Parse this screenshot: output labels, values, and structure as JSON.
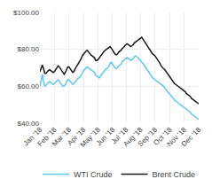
{
  "chart_data": {
    "type": "line",
    "categories": [
      "Jan '18",
      null,
      null,
      null,
      null,
      null,
      null,
      null,
      null,
      null,
      null,
      null,
      "Feb '18",
      null,
      null,
      null,
      null,
      null,
      null,
      null,
      null,
      null,
      null,
      null,
      "Mar '18",
      null,
      null,
      null,
      null,
      null,
      null,
      null,
      null,
      null,
      null,
      null,
      "Apr '18",
      null,
      null,
      null,
      null,
      null,
      null,
      null,
      null,
      null,
      null,
      null,
      "May '18",
      null,
      null,
      null,
      null,
      null,
      null,
      null,
      null,
      null,
      null,
      null,
      "Jun '18",
      null,
      null,
      null,
      null,
      null,
      null,
      null,
      null,
      null,
      null,
      "Jul '18",
      null,
      null,
      null,
      null,
      null,
      null,
      null,
      null,
      null,
      null,
      null,
      "Aug '18",
      null,
      null,
      null,
      null,
      null,
      null,
      null,
      null,
      null,
      null,
      null,
      "Sep '18",
      null,
      null,
      null,
      null,
      null,
      null,
      null,
      null,
      null,
      null,
      null,
      "Oct '18",
      null,
      null,
      null,
      null,
      null,
      null,
      null,
      null,
      null,
      null,
      null,
      "Nov '18",
      null,
      null,
      null,
      null,
      null,
      null,
      null,
      null,
      null,
      null,
      null,
      "Dec '18"
    ],
    "series": [
      {
        "name": "WTI Crude",
        "color": "#5bc8f5",
        "values": [
          60.0,
          63.5,
          66.5,
          62.5,
          60.1,
          60.5,
          61.5,
          62.0,
          62.5,
          62.0,
          61.5,
          61.0,
          61.5,
          62.5,
          63.0,
          63.5,
          62.5,
          61.5,
          61.0,
          60.0,
          60.2,
          61.0,
          62.5,
          63.5,
          63.5,
          62.5,
          61.5,
          61.0,
          61.5,
          62.5,
          63.5,
          64.0,
          64.5,
          65.0,
          66.0,
          67.5,
          68.5,
          69.0,
          70.0,
          70.5,
          70.0,
          69.5,
          69.0,
          68.5,
          68.0,
          67.5,
          66.0,
          65.5,
          65.0,
          64.5,
          65.5,
          66.5,
          67.5,
          68.5,
          69.0,
          69.5,
          70.0,
          71.0,
          72.5,
          73.0,
          72.0,
          70.5,
          70.0,
          69.5,
          70.0,
          71.0,
          71.5,
          72.0,
          73.5,
          74.0,
          74.5,
          75.0,
          75.5,
          75.0,
          74.5,
          74.0,
          74.5,
          75.0,
          76.0,
          76.5,
          76.0,
          75.5,
          74.5,
          73.5,
          73.0,
          72.5,
          71.5,
          70.5,
          69.5,
          68.5,
          67.0,
          66.0,
          65.0,
          64.5,
          64.0,
          63.5,
          63.0,
          62.5,
          62.0,
          61.5,
          61.0,
          60.5,
          60.0,
          59.0,
          58.0,
          57.0,
          56.5,
          56.0,
          55.0,
          54.0,
          53.0,
          52.5,
          52.0,
          51.5,
          51.0,
          50.5,
          50.0,
          49.5,
          49.0,
          48.5,
          48.0,
          47.5,
          47.0,
          46.5,
          46.0,
          45.0,
          44.5,
          44.0,
          43.5,
          43.0,
          42.5,
          42.0
        ]
      },
      {
        "name": "Brent Crude",
        "color": "#1a1a1a",
        "values": [
          68.0,
          70.0,
          71.5,
          69.5,
          67.0,
          67.0,
          68.0,
          68.5,
          69.0,
          68.5,
          68.0,
          67.5,
          68.0,
          69.0,
          70.0,
          71.0,
          70.5,
          69.5,
          68.5,
          67.0,
          66.5,
          67.5,
          69.0,
          70.5,
          70.5,
          69.5,
          68.5,
          67.5,
          68.0,
          69.5,
          70.5,
          71.5,
          72.5,
          73.5,
          75.0,
          76.5,
          77.5,
          78.0,
          79.0,
          79.5,
          78.5,
          77.5,
          77.0,
          76.5,
          76.0,
          75.5,
          74.0,
          74.0,
          74.5,
          75.5,
          76.5,
          77.5,
          78.5,
          79.0,
          79.5,
          80.0,
          80.5,
          81.0,
          81.5,
          80.5,
          79.5,
          78.0,
          77.5,
          77.0,
          77.5,
          78.5,
          79.0,
          79.5,
          80.5,
          81.0,
          82.0,
          82.5,
          83.0,
          82.5,
          82.0,
          81.5,
          82.0,
          82.5,
          83.5,
          84.0,
          84.5,
          85.0,
          85.5,
          86.0,
          86.5,
          85.5,
          84.5,
          83.5,
          82.5,
          81.5,
          80.0,
          79.0,
          78.0,
          77.5,
          77.0,
          76.5,
          75.5,
          74.5,
          74.0,
          72.5,
          71.0,
          70.0,
          69.5,
          69.0,
          68.0,
          67.0,
          66.0,
          65.5,
          64.5,
          63.5,
          62.5,
          61.5,
          61.0,
          60.5,
          60.0,
          59.5,
          59.0,
          58.5,
          58.0,
          57.5,
          57.0,
          56.0,
          55.5,
          55.0,
          54.5,
          53.5,
          53.0,
          52.5,
          52.0,
          51.5,
          51.0,
          50.5
        ]
      }
    ],
    "ylim": [
      40,
      100
    ],
    "yticks": [
      {
        "value": 40,
        "label": "$40.00"
      },
      {
        "value": 60,
        "label": "$60.00"
      },
      {
        "value": 80,
        "label": "$80.00"
      },
      {
        "value": 100,
        "label": "$100.00"
      }
    ],
    "grid": true,
    "legend": "bottom"
  }
}
